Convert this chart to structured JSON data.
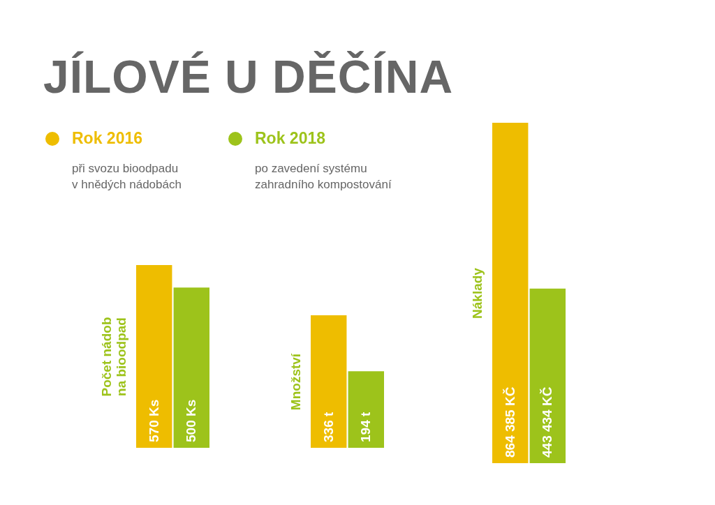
{
  "chart_data": [
    {
      "type": "bar",
      "title": "JÍLOVÉ U DĚČÍNA",
      "legend": "top",
      "annotations": [
        "při svozu bioodpadu\nv hnědých nádobách",
        "po zavedení systému\nzahradního kompostování"
      ],
      "ylabel": "Počet nádob\nna bioodpad",
      "categories": [
        null
      ],
      "series": [
        {
          "name": "Rok 2016",
          "color": "#eebd00",
          "values": [
            570
          ],
          "value_labels": [
            "570 Ks"
          ]
        },
        {
          "name": "Rok 2018",
          "color": "#9dc31b",
          "values": [
            500
          ],
          "value_labels": [
            "500 Ks"
          ]
        }
      ]
    },
    {
      "type": "bar",
      "ylabel": "Množství",
      "categories": [
        null
      ],
      "series": [
        {
          "color": "#eebd00",
          "values": [
            336
          ],
          "value_labels": [
            "336 t"
          ]
        },
        {
          "color": "#9dc31b",
          "values": [
            194
          ],
          "value_labels": [
            "194 t"
          ]
        }
      ]
    },
    {
      "type": "bar",
      "ylabel": "Náklady",
      "categories": [
        null
      ],
      "series": [
        {
          "color": "#eebd00",
          "values": [
            864385
          ],
          "value_labels": [
            "864 385 KČ"
          ]
        },
        {
          "color": "#9dc31b",
          "values": [
            443434
          ],
          "value_labels": [
            "443 434 KČ"
          ]
        }
      ]
    }
  ]
}
